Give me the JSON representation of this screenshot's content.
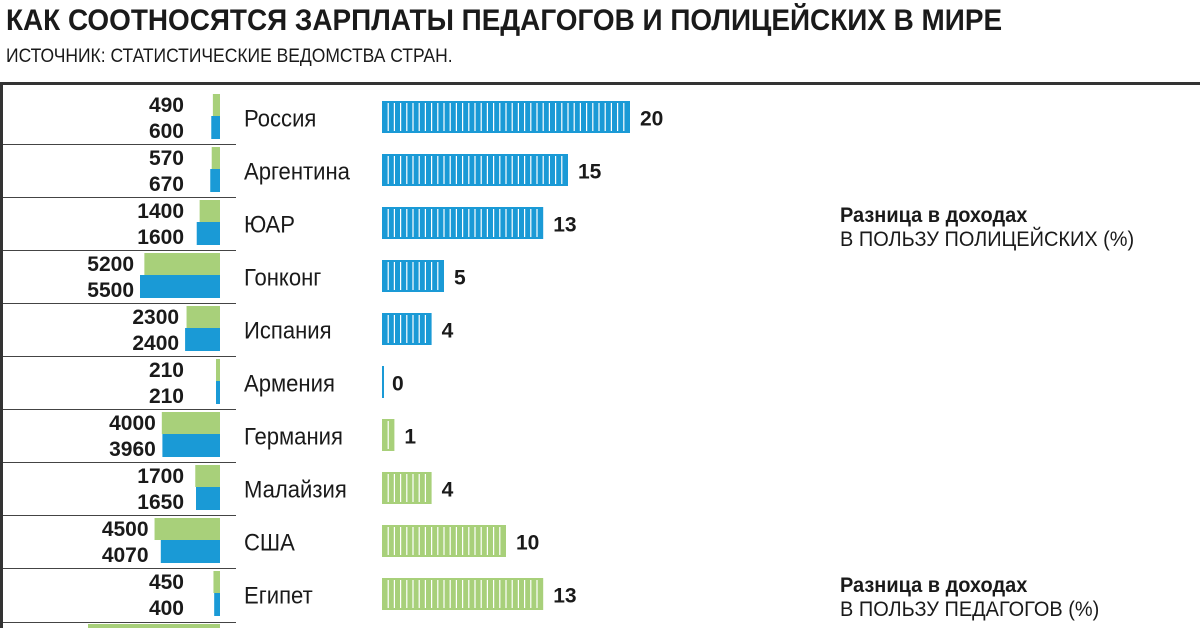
{
  "title": "КАК СООТНОСЯТСЯ ЗАРПЛАТЫ ПЕДАГОГОВ И ПОЛИЦЕЙСКИХ В МИРЕ",
  "subtitle": "ИСТОЧНИК: СТАТИСТИЧЕСКИЕ ВЕДОМСТВА СТРАН.",
  "legend_police": {
    "line1": "Разница в доходах",
    "line2": "В ПОЛЬЗУ ПОЛИЦЕЙСКИХ (%)"
  },
  "legend_teachers": {
    "line1": "Разница в доходах",
    "line2": "В ПОЛЬЗУ ПЕДАГОГОВ (%)"
  },
  "colors": {
    "teachers": "#a8d07a",
    "police": "#1a9ad6"
  },
  "chart_data": {
    "type": "bar",
    "categories": [
      "Россия",
      "Аргентина",
      "ЮАР",
      "Гонконг",
      "Испания",
      "Армения",
      "Германия",
      "Малайзия",
      "США",
      "Египет"
    ],
    "series": [
      {
        "values": [
          490,
          570,
          1400,
          5200,
          2300,
          210,
          4000,
          1700,
          4500,
          450
        ]
      },
      {
        "values": [
          600,
          670,
          1600,
          5500,
          2400,
          210,
          3960,
          1650,
          4070,
          400
        ]
      }
    ],
    "difference": {
      "values": [
        20,
        15,
        13,
        5,
        4,
        0,
        1,
        4,
        10,
        13
      ],
      "favor": [
        "police",
        "police",
        "police",
        "police",
        "police",
        "none",
        "teachers",
        "teachers",
        "teachers",
        "teachers"
      ]
    }
  }
}
